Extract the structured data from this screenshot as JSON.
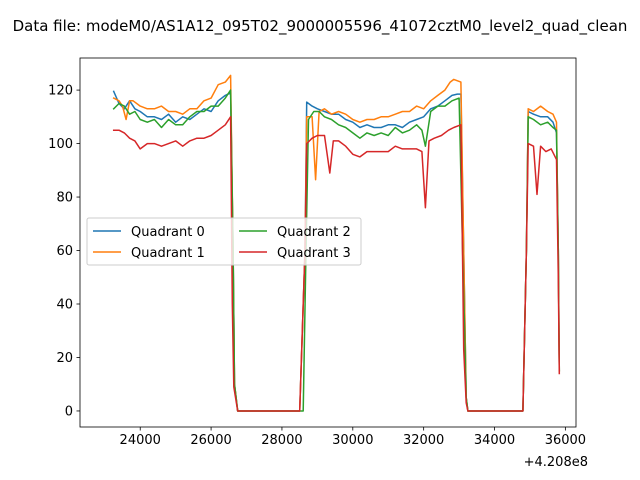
{
  "chart_data": {
    "type": "line",
    "title": "Data file: modeM0/AS1A12_095T02_9000005596_41072cztM0_level2_quad_clean",
    "xlabel": "",
    "ylabel": "",
    "x_offset_label": "+4.208e8",
    "xlim": [
      22300,
      36300
    ],
    "ylim": [
      -6,
      132
    ],
    "x_ticks": [
      24000,
      26000,
      28000,
      30000,
      32000,
      34000,
      36000
    ],
    "x_tick_labels": [
      "24000",
      "26000",
      "28000",
      "30000",
      "32000",
      "34000",
      "36000"
    ],
    "y_ticks": [
      0,
      20,
      40,
      60,
      80,
      100,
      120
    ],
    "y_tick_labels": [
      "0",
      "20",
      "40",
      "60",
      "80",
      "100",
      "120"
    ],
    "grid": false,
    "legend_position": "center-left",
    "legend_columns": 2,
    "colors": {
      "q0": "#1f77b4",
      "q1": "#ff7f0e",
      "q2": "#2ca02c",
      "q3": "#d62728",
      "axes": "#000000",
      "background": "#ffffff"
    },
    "series": [
      {
        "name": "Quadrant 0",
        "color": "#1f77b4",
        "points": [
          [
            23250,
            119.5
          ],
          [
            23400,
            115
          ],
          [
            23550,
            113
          ],
          [
            23700,
            116
          ],
          [
            23850,
            113
          ],
          [
            24000,
            112
          ],
          [
            24200,
            110
          ],
          [
            24400,
            110
          ],
          [
            24600,
            109
          ],
          [
            24800,
            111
          ],
          [
            25000,
            108
          ],
          [
            25200,
            110
          ],
          [
            25400,
            109
          ],
          [
            25600,
            111
          ],
          [
            25800,
            113
          ],
          [
            26000,
            112
          ],
          [
            26200,
            116
          ],
          [
            26400,
            118
          ],
          [
            26550,
            119
          ],
          [
            26620,
            60
          ],
          [
            26660,
            10
          ],
          [
            26750,
            0
          ],
          [
            28500,
            0
          ],
          [
            28650,
            60
          ],
          [
            28700,
            115.5
          ],
          [
            28850,
            114
          ],
          [
            29000,
            113
          ],
          [
            29200,
            112
          ],
          [
            29400,
            111
          ],
          [
            29600,
            111
          ],
          [
            29800,
            109
          ],
          [
            30000,
            108
          ],
          [
            30200,
            106
          ],
          [
            30400,
            107
          ],
          [
            30600,
            106
          ],
          [
            30800,
            106
          ],
          [
            31000,
            107
          ],
          [
            31200,
            107
          ],
          [
            31400,
            106
          ],
          [
            31600,
            108
          ],
          [
            31800,
            109
          ],
          [
            32000,
            110
          ],
          [
            32200,
            113
          ],
          [
            32400,
            114
          ],
          [
            32600,
            116
          ],
          [
            32800,
            118
          ],
          [
            32950,
            118.5
          ],
          [
            33050,
            118.5
          ],
          [
            33130,
            60
          ],
          [
            33200,
            5
          ],
          [
            33250,
            0
          ],
          [
            34800,
            0
          ],
          [
            34900,
            60
          ],
          [
            34950,
            112
          ],
          [
            35100,
            111
          ],
          [
            35300,
            110
          ],
          [
            35500,
            110
          ],
          [
            35650,
            108
          ],
          [
            35750,
            104
          ],
          [
            35800,
            60
          ],
          [
            35830,
            15
          ]
        ]
      },
      {
        "name": "Quadrant 1",
        "color": "#ff7f0e",
        "points": [
          [
            23250,
            117
          ],
          [
            23400,
            116
          ],
          [
            23500,
            114
          ],
          [
            23600,
            109
          ],
          [
            23700,
            116
          ],
          [
            23800,
            116
          ],
          [
            24000,
            114
          ],
          [
            24200,
            113
          ],
          [
            24400,
            113
          ],
          [
            24600,
            114
          ],
          [
            24800,
            112
          ],
          [
            25000,
            112
          ],
          [
            25200,
            111
          ],
          [
            25400,
            113
          ],
          [
            25600,
            113
          ],
          [
            25800,
            116
          ],
          [
            26000,
            117
          ],
          [
            26200,
            122
          ],
          [
            26400,
            123
          ],
          [
            26550,
            125.5
          ],
          [
            26620,
            60
          ],
          [
            26660,
            10
          ],
          [
            26750,
            0
          ],
          [
            28500,
            0
          ],
          [
            28650,
            60
          ],
          [
            28700,
            110
          ],
          [
            28850,
            110
          ],
          [
            28950,
            86.5
          ],
          [
            29050,
            112
          ],
          [
            29200,
            113
          ],
          [
            29400,
            111
          ],
          [
            29600,
            112
          ],
          [
            29800,
            111
          ],
          [
            30000,
            109
          ],
          [
            30200,
            108
          ],
          [
            30400,
            109
          ],
          [
            30600,
            109
          ],
          [
            30800,
            110
          ],
          [
            31000,
            110
          ],
          [
            31200,
            111
          ],
          [
            31400,
            112
          ],
          [
            31600,
            112
          ],
          [
            31800,
            114
          ],
          [
            32000,
            113
          ],
          [
            32200,
            116
          ],
          [
            32400,
            118
          ],
          [
            32600,
            120
          ],
          [
            32750,
            123
          ],
          [
            32850,
            124
          ],
          [
            33050,
            123
          ],
          [
            33130,
            60
          ],
          [
            33200,
            5
          ],
          [
            33250,
            0
          ],
          [
            34800,
            0
          ],
          [
            34900,
            60
          ],
          [
            34950,
            113
          ],
          [
            35100,
            112
          ],
          [
            35300,
            114
          ],
          [
            35500,
            112
          ],
          [
            35650,
            111
          ],
          [
            35750,
            108
          ],
          [
            35800,
            60
          ],
          [
            35830,
            15
          ]
        ]
      },
      {
        "name": "Quadrant 2",
        "color": "#2ca02c",
        "points": [
          [
            23250,
            113
          ],
          [
            23400,
            115
          ],
          [
            23550,
            114
          ],
          [
            23700,
            111
          ],
          [
            23850,
            112
          ],
          [
            24000,
            109
          ],
          [
            24200,
            108
          ],
          [
            24400,
            109
          ],
          [
            24600,
            106
          ],
          [
            24800,
            109
          ],
          [
            25000,
            107
          ],
          [
            25200,
            107
          ],
          [
            25400,
            110
          ],
          [
            25600,
            112
          ],
          [
            25800,
            112
          ],
          [
            26000,
            114
          ],
          [
            26200,
            114
          ],
          [
            26400,
            117
          ],
          [
            26550,
            120
          ],
          [
            26620,
            60
          ],
          [
            26660,
            10
          ],
          [
            26750,
            0
          ],
          [
            28500,
            0
          ],
          [
            28600,
            0
          ],
          [
            28680,
            60
          ],
          [
            28750,
            109
          ],
          [
            28900,
            112
          ],
          [
            29050,
            112
          ],
          [
            29200,
            110
          ],
          [
            29400,
            109
          ],
          [
            29600,
            107
          ],
          [
            29800,
            106
          ],
          [
            30000,
            104
          ],
          [
            30200,
            102
          ],
          [
            30400,
            104
          ],
          [
            30600,
            103
          ],
          [
            30800,
            104
          ],
          [
            31000,
            103
          ],
          [
            31200,
            106
          ],
          [
            31400,
            104
          ],
          [
            31600,
            105
          ],
          [
            31800,
            107
          ],
          [
            31950,
            105
          ],
          [
            32050,
            99
          ],
          [
            32200,
            112
          ],
          [
            32400,
            114
          ],
          [
            32600,
            114
          ],
          [
            32800,
            116
          ],
          [
            33000,
            117
          ],
          [
            33100,
            60
          ],
          [
            33200,
            5
          ],
          [
            33250,
            0
          ],
          [
            34800,
            0
          ],
          [
            34900,
            60
          ],
          [
            34950,
            110
          ],
          [
            35100,
            109
          ],
          [
            35300,
            107
          ],
          [
            35500,
            108
          ],
          [
            35650,
            106
          ],
          [
            35750,
            105
          ],
          [
            35800,
            60
          ],
          [
            35830,
            15
          ]
        ]
      },
      {
        "name": "Quadrant 3",
        "color": "#d62728",
        "points": [
          [
            23250,
            105
          ],
          [
            23400,
            105
          ],
          [
            23550,
            104
          ],
          [
            23700,
            102
          ],
          [
            23850,
            101
          ],
          [
            24000,
            98
          ],
          [
            24200,
            100
          ],
          [
            24400,
            100
          ],
          [
            24600,
            99
          ],
          [
            24800,
            100
          ],
          [
            25000,
            101
          ],
          [
            25200,
            99
          ],
          [
            25400,
            101
          ],
          [
            25600,
            102
          ],
          [
            25800,
            102
          ],
          [
            26000,
            103
          ],
          [
            26200,
            105
          ],
          [
            26400,
            107
          ],
          [
            26550,
            110
          ],
          [
            26600,
            40
          ],
          [
            26640,
            9
          ],
          [
            26750,
            0
          ],
          [
            28500,
            0
          ],
          [
            28650,
            60
          ],
          [
            28700,
            100
          ],
          [
            28850,
            102
          ],
          [
            29000,
            103
          ],
          [
            29200,
            103
          ],
          [
            29350,
            89
          ],
          [
            29450,
            101
          ],
          [
            29600,
            101
          ],
          [
            29800,
            99
          ],
          [
            30000,
            96
          ],
          [
            30200,
            95
          ],
          [
            30400,
            97
          ],
          [
            30600,
            97
          ],
          [
            30800,
            97
          ],
          [
            31000,
            97
          ],
          [
            31200,
            99
          ],
          [
            31400,
            98
          ],
          [
            31600,
            98
          ],
          [
            31800,
            98
          ],
          [
            31950,
            97
          ],
          [
            32050,
            76
          ],
          [
            32150,
            101
          ],
          [
            32300,
            102
          ],
          [
            32500,
            103
          ],
          [
            32700,
            105
          ],
          [
            32850,
            106
          ],
          [
            33050,
            107
          ],
          [
            33130,
            23
          ],
          [
            33200,
            3
          ],
          [
            33250,
            0
          ],
          [
            34800,
            0
          ],
          [
            34900,
            60
          ],
          [
            34950,
            100
          ],
          [
            35100,
            99
          ],
          [
            35200,
            81
          ],
          [
            35300,
            99
          ],
          [
            35450,
            97
          ],
          [
            35600,
            98
          ],
          [
            35750,
            94
          ],
          [
            35800,
            50
          ],
          [
            35830,
            14
          ]
        ]
      }
    ]
  }
}
